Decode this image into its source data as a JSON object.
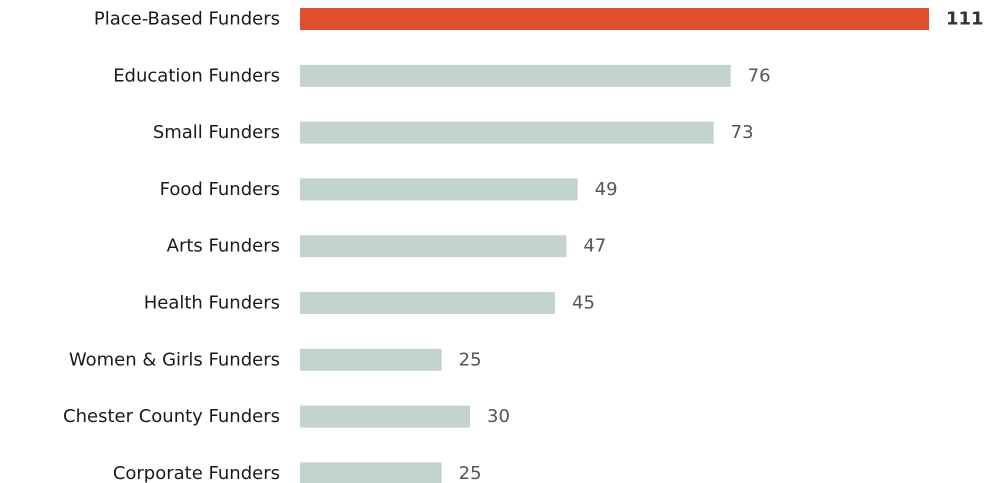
{
  "chart_data": {
    "type": "bar",
    "orientation": "horizontal",
    "title": "",
    "xlabel": "",
    "ylabel": "",
    "categories": [
      "Place-Based Funders",
      "Education Funders",
      "Small Funders",
      "Food Funders",
      "Arts Funders",
      "Health Funders",
      "Women & Girls Funders",
      "Chester County Funders",
      "Corporate Funders"
    ],
    "values": [
      111,
      76,
      73,
      49,
      47,
      45,
      25,
      30,
      25
    ],
    "value_labels": [
      "111",
      "76",
      "73",
      "49",
      "47",
      "45",
      "25",
      "30",
      "25"
    ],
    "highlight_index": 0,
    "colors": {
      "highlight": "#E04E2E",
      "default": "#C3D3CE",
      "label": "#1a1a1a",
      "value": "#555555",
      "value_highlight": "#333333"
    },
    "grid": false,
    "legend": "none"
  }
}
